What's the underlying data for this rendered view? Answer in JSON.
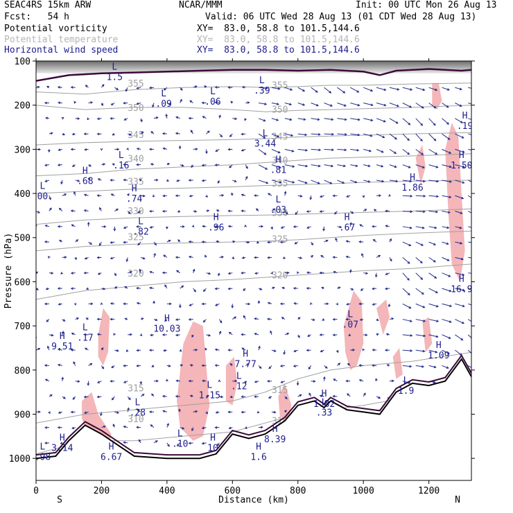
{
  "header": {
    "model": "SEAC4RS 15km ARW",
    "fcst": "Fcst:   54 h",
    "org": "NCAR/MMM",
    "init": "Init: 00 UTC Mon 26 Aug 13",
    "valid": "Valid: 06 UTC Wed 28 Aug 13 (01 CDT Wed 28 Aug 13)",
    "pv_label": "Potential vorticity",
    "pv_xy": "XY=  83.0, 58.8 to 101.5,144.6",
    "theta_label": "Potential temperature",
    "theta_xy": "XY=  83.0, 58.8 to 101.5,144.6",
    "wind_label": "Horizontal wind speed",
    "wind_xy": "XY=  83.0, 58.8 to 101.5,144.6"
  },
  "colors": {
    "pv_shade": "#f4b6b8",
    "theta_contour": "#a0a0a0",
    "wind_text": "#1c1c8c",
    "wind_vector": "#1f2a8c",
    "terrain": "#000000",
    "tropopause": "#3a0a3a"
  },
  "chart_data": {
    "type": "cross-section",
    "xlabel": "Distance (km)",
    "ylabel": "Pressure (hPa)",
    "xlim": [
      0,
      1330
    ],
    "ylim": [
      1050,
      100
    ],
    "x_ticks": [
      "0",
      "200",
      "400",
      "600",
      "800",
      "1000",
      "1200"
    ],
    "y_ticks": [
      "100",
      "200",
      "300",
      "400",
      "500",
      "600",
      "700",
      "800",
      "900",
      "1000"
    ],
    "end_labels": {
      "left": "S",
      "right": "N"
    },
    "theta_contours": [
      {
        "label": "310",
        "points": [
          [
            0,
            990
          ],
          [
            150,
            960
          ],
          [
            300,
            960
          ],
          [
            450,
            950
          ],
          [
            600,
            940
          ],
          [
            700,
            920
          ],
          [
            800,
            900
          ],
          [
            900,
            890
          ],
          [
            1000,
            880
          ],
          [
            1150,
            860
          ],
          [
            1330,
            850
          ]
        ]
      },
      {
        "label": "315",
        "points": [
          [
            0,
            920
          ],
          [
            150,
            900
          ],
          [
            300,
            890
          ],
          [
            450,
            880
          ],
          [
            600,
            870
          ],
          [
            700,
            850
          ],
          [
            800,
            820
          ],
          [
            900,
            800
          ],
          [
            1000,
            790
          ],
          [
            1150,
            780
          ],
          [
            1330,
            760
          ]
        ]
      },
      {
        "label": "320",
        "points": [
          [
            0,
            640
          ],
          [
            150,
            620
          ],
          [
            300,
            610
          ],
          [
            450,
            600
          ],
          [
            600,
            595
          ],
          [
            700,
            590
          ],
          [
            800,
            585
          ],
          [
            900,
            580
          ],
          [
            1000,
            575
          ],
          [
            1150,
            570
          ],
          [
            1330,
            560
          ]
        ]
      },
      {
        "label": "325",
        "points": [
          [
            0,
            530
          ],
          [
            150,
            520
          ],
          [
            300,
            515
          ],
          [
            450,
            512
          ],
          [
            600,
            510
          ],
          [
            700,
            508
          ],
          [
            800,
            505
          ],
          [
            900,
            500
          ],
          [
            1000,
            495
          ],
          [
            1150,
            490
          ],
          [
            1330,
            485
          ]
        ]
      },
      {
        "label": "330",
        "points": [
          [
            0,
            470
          ],
          [
            150,
            460
          ],
          [
            300,
            455
          ],
          [
            450,
            452
          ],
          [
            600,
            450
          ],
          [
            700,
            449
          ],
          [
            800,
            447
          ],
          [
            900,
            445
          ],
          [
            1000,
            443
          ],
          [
            1150,
            440
          ],
          [
            1330,
            435
          ]
        ]
      },
      {
        "label": "335",
        "points": [
          [
            0,
            400
          ],
          [
            150,
            395
          ],
          [
            300,
            390
          ],
          [
            450,
            388
          ],
          [
            600,
            385
          ],
          [
            700,
            382
          ],
          [
            800,
            380
          ],
          [
            900,
            378
          ],
          [
            1000,
            375
          ],
          [
            1150,
            372
          ],
          [
            1330,
            370
          ]
        ]
      },
      {
        "label": "340",
        "points": [
          [
            0,
            360
          ],
          [
            150,
            355
          ],
          [
            300,
            345
          ],
          [
            450,
            340
          ],
          [
            600,
            335
          ],
          [
            700,
            330
          ],
          [
            800,
            325
          ],
          [
            900,
            320
          ],
          [
            1000,
            318
          ],
          [
            1150,
            315
          ],
          [
            1330,
            310
          ]
        ]
      },
      {
        "label": "345",
        "points": [
          [
            0,
            290
          ],
          [
            150,
            285
          ],
          [
            300,
            282
          ],
          [
            450,
            280
          ],
          [
            600,
            278
          ],
          [
            700,
            276
          ],
          [
            800,
            272
          ],
          [
            900,
            270
          ],
          [
            1000,
            268
          ],
          [
            1150,
            265
          ],
          [
            1330,
            262
          ]
        ]
      },
      {
        "label": "350",
        "points": [
          [
            0,
            200
          ],
          [
            150,
            210
          ],
          [
            300,
            205
          ],
          [
            450,
            205
          ],
          [
            600,
            210
          ],
          [
            700,
            215
          ],
          [
            800,
            212
          ],
          [
            900,
            210
          ],
          [
            1000,
            208
          ],
          [
            1150,
            205
          ],
          [
            1330,
            200
          ]
        ]
      },
      {
        "label": "355",
        "points": [
          [
            0,
            170
          ],
          [
            150,
            175
          ],
          [
            300,
            165
          ],
          [
            450,
            160
          ],
          [
            600,
            158
          ],
          [
            700,
            160
          ],
          [
            800,
            158
          ],
          [
            900,
            155
          ],
          [
            1000,
            155
          ],
          [
            1150,
            152
          ],
          [
            1330,
            150
          ]
        ]
      }
    ],
    "terrain_pressure": [
      [
        0,
        1000
      ],
      [
        60,
        995
      ],
      [
        100,
        960
      ],
      [
        150,
        925
      ],
      [
        200,
        945
      ],
      [
        300,
        995
      ],
      [
        400,
        1000
      ],
      [
        500,
        1000
      ],
      [
        550,
        990
      ],
      [
        600,
        945
      ],
      [
        650,
        955
      ],
      [
        700,
        945
      ],
      [
        760,
        915
      ],
      [
        800,
        880
      ],
      [
        850,
        870
      ],
      [
        880,
        885
      ],
      [
        900,
        870
      ],
      [
        950,
        890
      ],
      [
        1000,
        895
      ],
      [
        1050,
        900
      ],
      [
        1100,
        850
      ],
      [
        1150,
        830
      ],
      [
        1200,
        835
      ],
      [
        1250,
        825
      ],
      [
        1300,
        775
      ],
      [
        1330,
        815
      ]
    ],
    "tropopause_pressure": [
      [
        0,
        145
      ],
      [
        100,
        132
      ],
      [
        200,
        128
      ],
      [
        300,
        126
      ],
      [
        400,
        124
      ],
      [
        500,
        122
      ],
      [
        600,
        120
      ],
      [
        700,
        120
      ],
      [
        800,
        122
      ],
      [
        900,
        120
      ],
      [
        1000,
        124
      ],
      [
        1050,
        132
      ],
      [
        1100,
        122
      ],
      [
        1200,
        118
      ],
      [
        1300,
        122
      ],
      [
        1330,
        120
      ]
    ],
    "pv_regions": [
      [
        [
          140,
          870
        ],
        [
          170,
          850
        ],
        [
          190,
          900
        ],
        [
          230,
          945
        ],
        [
          220,
          980
        ],
        [
          180,
          990
        ],
        [
          160,
          950
        ],
        [
          140,
          910
        ]
      ],
      [
        [
          190,
          720
        ],
        [
          205,
          660
        ],
        [
          225,
          680
        ],
        [
          220,
          760
        ],
        [
          205,
          790
        ],
        [
          190,
          770
        ]
      ],
      [
        [
          450,
          740
        ],
        [
          480,
          690
        ],
        [
          510,
          700
        ],
        [
          520,
          790
        ],
        [
          530,
          880
        ],
        [
          510,
          950
        ],
        [
          480,
          960
        ],
        [
          440,
          930
        ],
        [
          430,
          870
        ]
      ],
      [
        [
          580,
          790
        ],
        [
          605,
          770
        ],
        [
          615,
          830
        ],
        [
          600,
          880
        ],
        [
          580,
          870
        ]
      ],
      [
        [
          740,
          860
        ],
        [
          760,
          830
        ],
        [
          780,
          880
        ],
        [
          770,
          920
        ],
        [
          745,
          905
        ]
      ],
      [
        [
          940,
          700
        ],
        [
          970,
          620
        ],
        [
          995,
          645
        ],
        [
          1000,
          740
        ],
        [
          980,
          790
        ],
        [
          960,
          800
        ],
        [
          945,
          760
        ]
      ],
      [
        [
          1040,
          660
        ],
        [
          1070,
          640
        ],
        [
          1080,
          680
        ],
        [
          1060,
          720
        ]
      ],
      [
        [
          1090,
          770
        ],
        [
          1110,
          750
        ],
        [
          1120,
          810
        ],
        [
          1100,
          820
        ]
      ],
      [
        [
          1180,
          690
        ],
        [
          1200,
          680
        ],
        [
          1210,
          740
        ],
        [
          1190,
          760
        ]
      ],
      [
        [
          1250,
          300
        ],
        [
          1270,
          240
        ],
        [
          1290,
          270
        ],
        [
          1300,
          400
        ],
        [
          1310,
          530
        ],
        [
          1295,
          600
        ],
        [
          1270,
          560
        ],
        [
          1260,
          450
        ]
      ],
      [
        [
          1210,
          150
        ],
        [
          1230,
          150
        ],
        [
          1240,
          190
        ],
        [
          1225,
          210
        ],
        [
          1210,
          200
        ]
      ],
      [
        [
          1160,
          320
        ],
        [
          1180,
          290
        ],
        [
          1190,
          340
        ],
        [
          1175,
          380
        ]
      ]
    ],
    "wind_extrema": [
      {
        "kind": "H",
        "value": "9.51",
        "x": 80,
        "p": 730
      },
      {
        "kind": "L",
        "value": ".17",
        "x": 150,
        "p": 710
      },
      {
        "kind": "H",
        "value": ".68",
        "x": 150,
        "p": 355
      },
      {
        "kind": "L",
        "value": "00",
        "x": 20,
        "p": 390
      },
      {
        "kind": "L",
        "value": ".16",
        "x": 260,
        "p": 320
      },
      {
        "kind": "H",
        "value": ".74",
        "x": 300,
        "p": 395
      },
      {
        "kind": "L",
        "value": ".82",
        "x": 320,
        "p": 470
      },
      {
        "kind": "L",
        "value": ".09",
        "x": 390,
        "p": 180
      },
      {
        "kind": "L",
        "value": ".06",
        "x": 540,
        "p": 175
      },
      {
        "kind": "L",
        "value": ".39",
        "x": 690,
        "p": 150
      },
      {
        "kind": "L",
        "value": "3.44",
        "x": 700,
        "p": 270
      },
      {
        "kind": "H",
        "value": ".81",
        "x": 740,
        "p": 330
      },
      {
        "kind": "L",
        "value": ".03",
        "x": 740,
        "p": 420
      },
      {
        "kind": "H",
        "value": ".96",
        "x": 550,
        "p": 460
      },
      {
        "kind": "H",
        "value": ".67",
        "x": 950,
        "p": 460
      },
      {
        "kind": "H",
        "value": "1.86",
        "x": 1150,
        "p": 370
      },
      {
        "kind": "H",
        "value": "1.50",
        "x": 1300,
        "p": 320
      },
      {
        "kind": "H",
        "value": ".19",
        "x": 1310,
        "p": 230
      },
      {
        "kind": "H",
        "value": "16.9",
        "x": 1300,
        "p": 600
      },
      {
        "kind": "H",
        "value": "10.03",
        "x": 400,
        "p": 690
      },
      {
        "kind": "L",
        "value": ".07",
        "x": 960,
        "p": 680
      },
      {
        "kind": "H",
        "value": "1.09",
        "x": 1230,
        "p": 750
      },
      {
        "kind": "H",
        "value": "7.77",
        "x": 640,
        "p": 770
      },
      {
        "kind": "L",
        "value": "1.15",
        "x": 530,
        "p": 840
      },
      {
        "kind": "L",
        "value": ".12",
        "x": 620,
        "p": 820
      },
      {
        "kind": "H",
        "value": "1.82",
        "x": 880,
        "p": 860
      },
      {
        "kind": "L",
        "value": ".33",
        "x": 880,
        "p": 880
      },
      {
        "kind": "L",
        "value": ".28",
        "x": 310,
        "p": 880
      },
      {
        "kind": "L",
        "value": ".10",
        "x": 440,
        "p": 950
      },
      {
        "kind": "H",
        "value": "10",
        "x": 540,
        "p": 960
      },
      {
        "kind": "H",
        "value": "6.67",
        "x": 230,
        "p": 980
      },
      {
        "kind": "H",
        "value": "1.6",
        "x": 680,
        "p": 980
      },
      {
        "kind": "H",
        "value": "8.39",
        "x": 730,
        "p": 940
      },
      {
        "kind": "L",
        "value": ".98",
        "x": 20,
        "p": 980
      },
      {
        "kind": "H",
        "value": "3.14",
        "x": 80,
        "p": 960
      },
      {
        "kind": "L",
        "value": "1.9",
        "x": 1130,
        "p": 830
      },
      {
        "kind": "L",
        "value": "1.5",
        "x": 240,
        "p": 120
      }
    ],
    "theta_labels_positions": "inline"
  }
}
